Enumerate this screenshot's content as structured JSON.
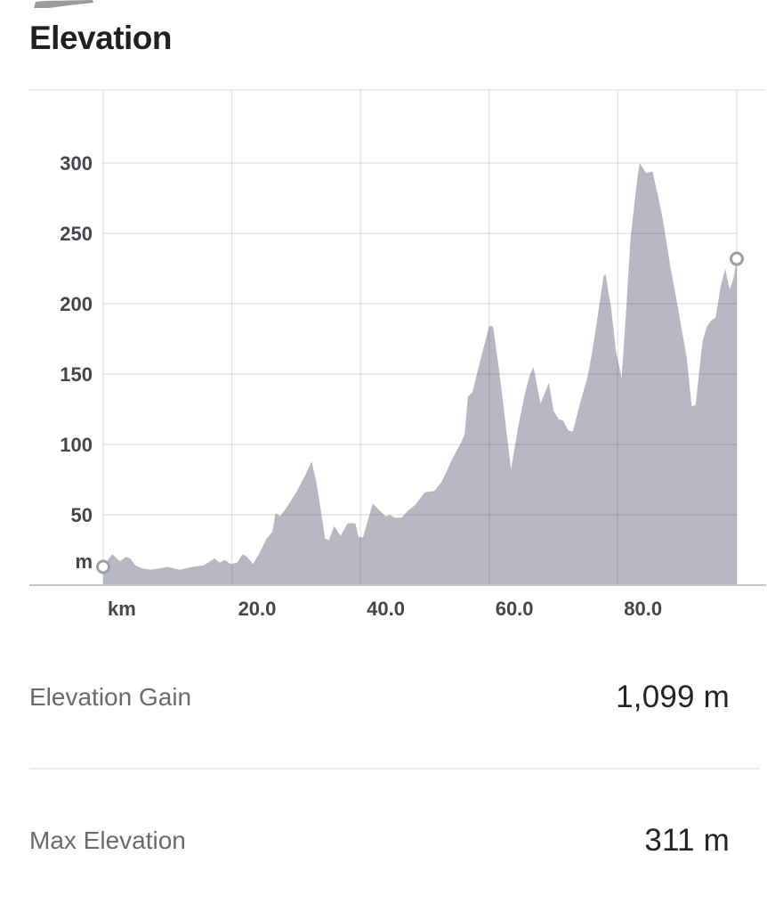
{
  "title": "Elevation",
  "stats": [
    {
      "label": "Elevation Gain",
      "value": "1,099 m"
    },
    {
      "label": "Max Elevation",
      "value": "311 m"
    }
  ],
  "chart_data": {
    "type": "area",
    "title": "Elevation",
    "x_unit_label": "km",
    "y_unit_label": "m",
    "xlim": [
      0,
      98.5
    ],
    "ylim": [
      0,
      352
    ],
    "grid": true,
    "legend": "none",
    "x_ticks": [
      {
        "value": 20,
        "label": "20.0"
      },
      {
        "value": 40,
        "label": "40.0"
      },
      {
        "value": 60,
        "label": "60.0"
      },
      {
        "value": 80,
        "label": "80.0"
      }
    ],
    "y_ticks": [
      {
        "value": 50,
        "label": "50"
      },
      {
        "value": 100,
        "label": "100"
      },
      {
        "value": 150,
        "label": "150"
      },
      {
        "value": 200,
        "label": "200"
      },
      {
        "value": 250,
        "label": "250"
      },
      {
        "value": 300,
        "label": "300"
      }
    ],
    "colors": {
      "area_fill": "#b8b8c4",
      "grid_overlay": "rgba(50,50,65,0.12)",
      "frame_line": "#e7e7ea",
      "baseline": "#c5c5cb",
      "tick_label": "#45454d",
      "marker_stroke": "#9ba0ab",
      "marker_fill": "#ffffff"
    },
    "markers": {
      "start": {
        "km": 0,
        "m": 13
      },
      "end": {
        "km": 98.5,
        "m": 232
      }
    },
    "points_km_m": [
      [
        0,
        13
      ],
      [
        1.4,
        22
      ],
      [
        2.1,
        19
      ],
      [
        2.6,
        17
      ],
      [
        3.5,
        20
      ],
      [
        4.2,
        19
      ],
      [
        5,
        14
      ],
      [
        6,
        12
      ],
      [
        7.3,
        11
      ],
      [
        9,
        12
      ],
      [
        10,
        13
      ],
      [
        11.9,
        11
      ],
      [
        13.8,
        13
      ],
      [
        15.6,
        14
      ],
      [
        17.3,
        19
      ],
      [
        18.1,
        16
      ],
      [
        18.9,
        18
      ],
      [
        19.8,
        15
      ],
      [
        20.8,
        16
      ],
      [
        21.7,
        22
      ],
      [
        22.4,
        20
      ],
      [
        23.3,
        15
      ],
      [
        24.2,
        22
      ],
      [
        25.4,
        33
      ],
      [
        26.3,
        38
      ],
      [
        26.8,
        51
      ],
      [
        27.5,
        49
      ],
      [
        28.5,
        55
      ],
      [
        30,
        66
      ],
      [
        31.5,
        79
      ],
      [
        32.4,
        88
      ],
      [
        33.1,
        74
      ],
      [
        33.6,
        60
      ],
      [
        34.5,
        33
      ],
      [
        35.1,
        32
      ],
      [
        35.9,
        42
      ],
      [
        36.9,
        35
      ],
      [
        38,
        44
      ],
      [
        39.2,
        44
      ],
      [
        39.7,
        34
      ],
      [
        40.4,
        34
      ],
      [
        41.9,
        58
      ],
      [
        43.2,
        52
      ],
      [
        43.9,
        49
      ],
      [
        44.6,
        50
      ],
      [
        45.3,
        48
      ],
      [
        46.4,
        48
      ],
      [
        47.4,
        53
      ],
      [
        48.5,
        57
      ],
      [
        50,
        66
      ],
      [
        51.5,
        67
      ],
      [
        52.7,
        74
      ],
      [
        53.5,
        82
      ],
      [
        54.3,
        90
      ],
      [
        55,
        96
      ],
      [
        55.6,
        101
      ],
      [
        56.2,
        107
      ],
      [
        56.7,
        134
      ],
      [
        57.4,
        137
      ],
      [
        58.2,
        152
      ],
      [
        59.1,
        168
      ],
      [
        60,
        184
      ],
      [
        60.6,
        184
      ],
      [
        61.5,
        155
      ],
      [
        62.5,
        117
      ],
      [
        63.4,
        82
      ],
      [
        64.5,
        112
      ],
      [
        65.5,
        135
      ],
      [
        66.3,
        149
      ],
      [
        66.9,
        155
      ],
      [
        68,
        129
      ],
      [
        69.3,
        144
      ],
      [
        70,
        124
      ],
      [
        70.8,
        118
      ],
      [
        71.5,
        117
      ],
      [
        72.3,
        110
      ],
      [
        73,
        109
      ],
      [
        74.3,
        132
      ],
      [
        75.3,
        148
      ],
      [
        76,
        165
      ],
      [
        77,
        195
      ],
      [
        77.8,
        220
      ],
      [
        78.1,
        221
      ],
      [
        79,
        196
      ],
      [
        79.7,
        167
      ],
      [
        80.6,
        147
      ],
      [
        81.3,
        195
      ],
      [
        82,
        247
      ],
      [
        83,
        288
      ],
      [
        83.4,
        300
      ],
      [
        84.4,
        293
      ],
      [
        85.4,
        294
      ],
      [
        86.2,
        278
      ],
      [
        87,
        260
      ],
      [
        88.2,
        226
      ],
      [
        89.3,
        199
      ],
      [
        90,
        180
      ],
      [
        90.7,
        163
      ],
      [
        91.5,
        127
      ],
      [
        92.1,
        128
      ],
      [
        93.2,
        174
      ],
      [
        93.9,
        184
      ],
      [
        94.5,
        188
      ],
      [
        95.2,
        190
      ],
      [
        96,
        212
      ],
      [
        96.7,
        225
      ],
      [
        97.4,
        210
      ],
      [
        98,
        218
      ],
      [
        98.5,
        232
      ]
    ]
  }
}
